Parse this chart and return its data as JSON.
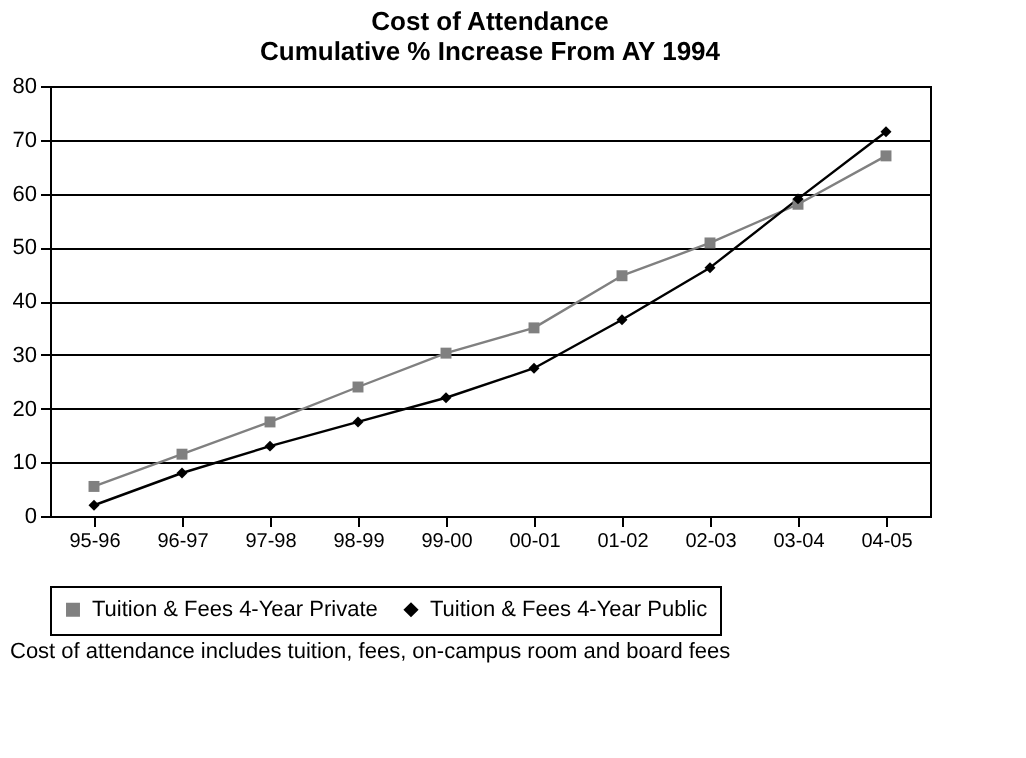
{
  "chart_data": {
    "type": "line",
    "title": [
      "Cost of Attendance",
      "Cumulative % Increase From AY 1994"
    ],
    "categories": [
      "95-96",
      "96-97",
      "97-98",
      "98-99",
      "99-00",
      "00-01",
      "01-02",
      "02-03",
      "03-04",
      "04-05"
    ],
    "series": [
      {
        "name": "Tuition & Fees 4-Year Private",
        "color": "#808080",
        "marker": "square",
        "values": [
          5.5,
          11.5,
          17.5,
          24,
          30.3,
          35,
          44.7,
          50.8,
          58,
          67
        ]
      },
      {
        "name": "Tuition & Fees 4-Year Public",
        "color": "#000000",
        "marker": "diamond",
        "values": [
          2,
          8,
          13,
          17.5,
          22,
          27.5,
          36.5,
          46.2,
          59,
          71.5
        ]
      }
    ],
    "ylim": [
      0,
      80
    ],
    "yticks": [
      0,
      10,
      20,
      30,
      40,
      50,
      60,
      70,
      80
    ],
    "grid": "y",
    "legend": "bottom",
    "annotations": [
      "Cost of attendance includes tuition, fees, on-campus room and board fees"
    ]
  }
}
